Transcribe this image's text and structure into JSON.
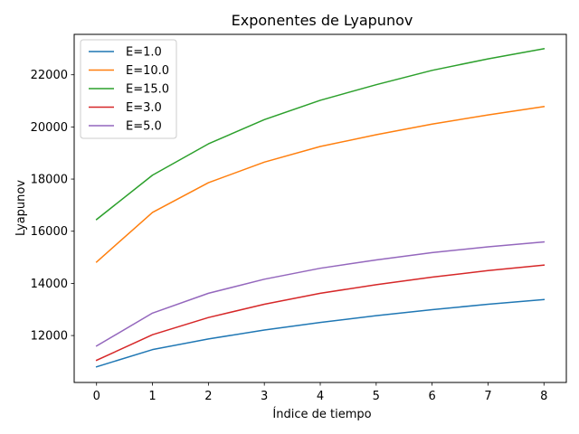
{
  "chart_data": {
    "type": "line",
    "title": "Exponentes de Lyapunov",
    "xlabel": "Índice de tiempo",
    "ylabel": "Lyapunov",
    "x": [
      0,
      1,
      2,
      3,
      4,
      5,
      6,
      7,
      8
    ],
    "xlim": [
      -0.4,
      8.4
    ],
    "ylim": [
      10200,
      23550
    ],
    "xticks": [
      0,
      1,
      2,
      3,
      4,
      5,
      6,
      7,
      8
    ],
    "yticks": [
      12000,
      14000,
      16000,
      18000,
      20000,
      22000
    ],
    "grid": false,
    "legend_position": "top-left",
    "series": [
      {
        "name": "E=1.0",
        "color": "#1f77b4",
        "values": [
          10800,
          11460,
          11870,
          12210,
          12500,
          12760,
          12990,
          13200,
          13380
        ]
      },
      {
        "name": "E=10.0",
        "color": "#ff7f0e",
        "values": [
          14820,
          16720,
          17860,
          18650,
          19250,
          19700,
          20110,
          20460,
          20780
        ]
      },
      {
        "name": "E=15.0",
        "color": "#2ca02c",
        "values": [
          16450,
          18150,
          19350,
          20280,
          21020,
          21620,
          22170,
          22610,
          23000
        ]
      },
      {
        "name": "E=3.0",
        "color": "#d62728",
        "values": [
          11050,
          12030,
          12690,
          13200,
          13620,
          13950,
          14240,
          14490,
          14700
        ]
      },
      {
        "name": "E=5.0",
        "color": "#9467bd",
        "values": [
          11600,
          12860,
          13620,
          14160,
          14580,
          14900,
          15180,
          15400,
          15590
        ]
      }
    ]
  }
}
